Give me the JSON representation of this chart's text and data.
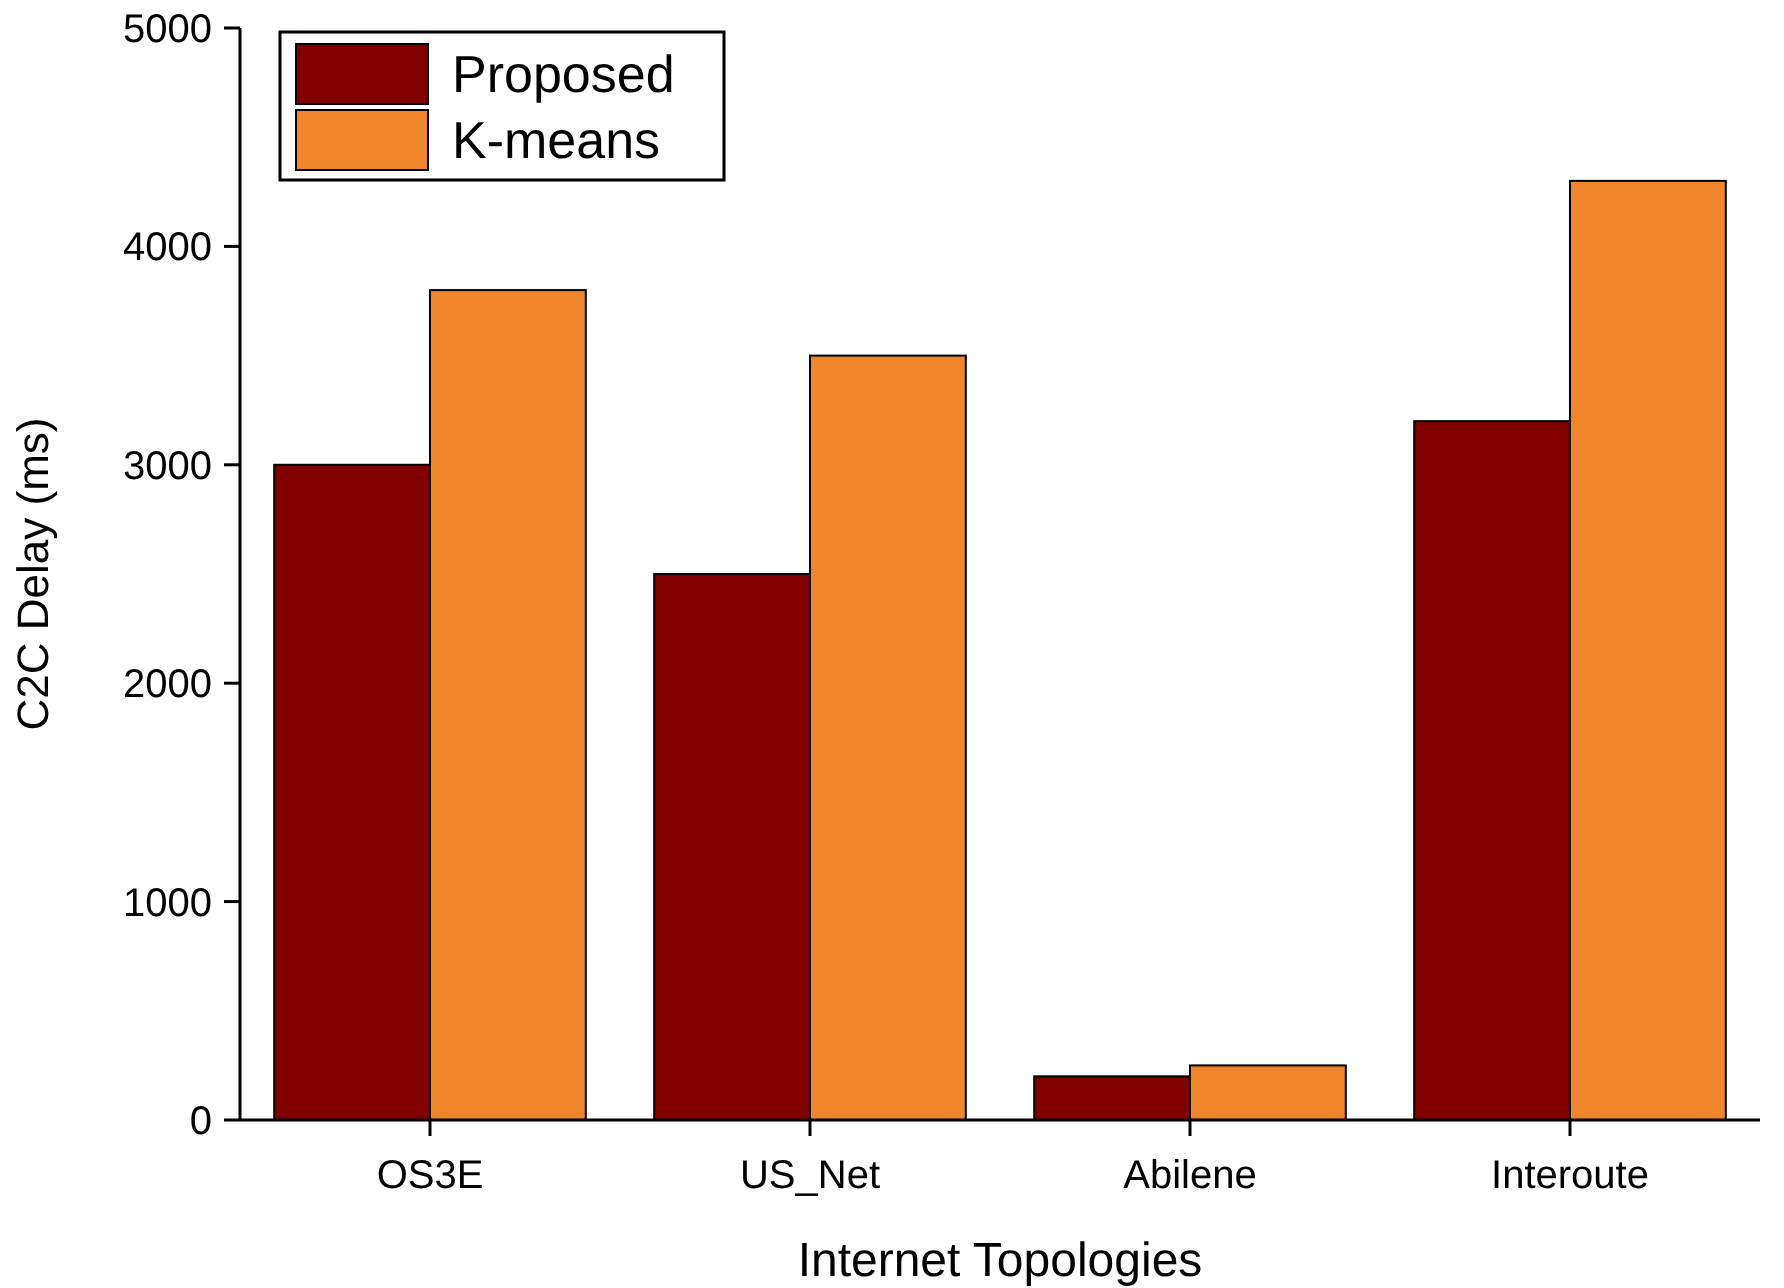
{
  "chart_data": {
    "type": "bar",
    "xlabel": "Internet Topologies",
    "ylabel": "C2C Delay (ms)",
    "categories": [
      "OS3E",
      "US_Net",
      "Abilene",
      "Interoute"
    ],
    "series": [
      {
        "name": "Proposed",
        "color": "#800000",
        "values": [
          3000,
          2500,
          200,
          3200
        ]
      },
      {
        "name": "K-means",
        "color": "#f0862b",
        "values": [
          3800,
          3500,
          250,
          4300
        ]
      }
    ],
    "ylim": [
      0,
      5000
    ],
    "yticks": [
      0,
      1000,
      2000,
      3000,
      4000,
      5000
    ],
    "legend": "top left",
    "grid": false
  }
}
